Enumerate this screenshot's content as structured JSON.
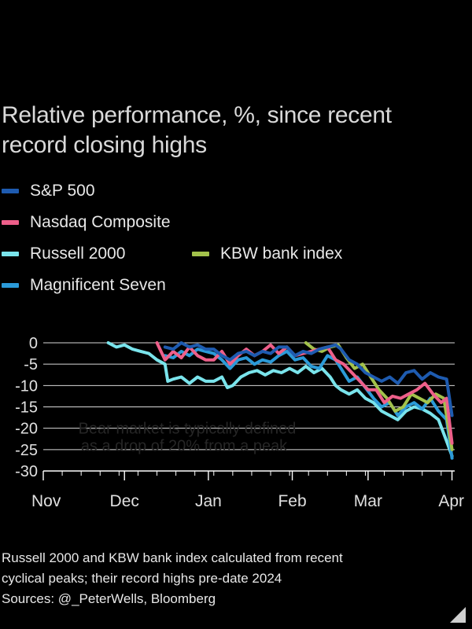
{
  "title": "Relative performance, %, since recent record closing highs",
  "legend": [
    {
      "label": "S&P 500",
      "color": "#1e5bb0"
    },
    {
      "label": "Nasdaq Composite",
      "color": "#ee5f8a"
    },
    {
      "label": "Russell 2000",
      "color": "#7ae4ec"
    },
    {
      "label": "KBW bank index",
      "color": "#a3c24b"
    },
    {
      "label": "Magnificent Seven",
      "color": "#2b9ad8"
    }
  ],
  "footnote": {
    "line1": "Russell 2000 and KBW bank index calculated from recent",
    "line2": "cyclical peaks; their record highs pre-date 2024",
    "line3": "Sources: @_PeterWells, Bloomberg"
  },
  "chart_data": {
    "type": "line",
    "title": "Relative performance, %, since recent record closing highs",
    "xlabel": "",
    "ylabel": "%",
    "ylim": [
      -30,
      0
    ],
    "yticks": [
      0,
      -5,
      -10,
      -15,
      -20,
      -25,
      -30
    ],
    "ytick_labels": [
      "0",
      "-5",
      "-10",
      "-15",
      "-20",
      "-25",
      "-30"
    ],
    "x_unit": "days since 1 Nov 2024",
    "xlim": [
      0,
      152
    ],
    "month_ticks": [
      {
        "label": "Nov",
        "x": 0
      },
      {
        "label": "Dec",
        "x": 30
      },
      {
        "label": "Jan",
        "x": 61
      },
      {
        "label": "Feb",
        "x": 92
      },
      {
        "label": "Mar",
        "x": 120
      },
      {
        "label": "Apr",
        "x": 151
      }
    ],
    "annotation": {
      "line1": "Bear market is typically defined",
      "line2": "as a drop of 20% from a peak",
      "y": -20
    },
    "series": [
      {
        "name": "Russell 2000",
        "color": "#7ae4ec",
        "x": [
          24,
          27,
          30,
          33,
          36,
          39,
          42,
          45,
          46,
          48,
          51,
          54,
          57,
          60,
          63,
          66,
          68,
          70,
          73,
          76,
          79,
          82,
          85,
          88,
          91,
          94,
          97,
          100,
          103,
          106,
          108,
          110,
          113,
          116,
          119,
          122,
          125,
          128,
          131,
          134,
          137,
          140,
          143,
          146,
          149,
          151
        ],
        "y": [
          0,
          -1,
          -0.5,
          -1.5,
          -2,
          -2.5,
          -4,
          -5,
          -9,
          -8.5,
          -8,
          -9.5,
          -8,
          -9,
          -9,
          -8,
          -10.5,
          -10,
          -8,
          -7,
          -6.5,
          -7.5,
          -6.5,
          -7,
          -6,
          -7,
          -5.5,
          -7,
          -6,
          -8,
          -10,
          -11,
          -12,
          -11,
          -13,
          -14,
          -16,
          -17,
          -18,
          -16,
          -15,
          -15.5,
          -16.5,
          -18,
          -23,
          -26.5
        ]
      },
      {
        "name": "Magnificent Seven",
        "color": "#2b9ad8",
        "x": [
          45,
          48,
          51,
          54,
          57,
          60,
          63,
          66,
          69,
          72,
          75,
          78,
          81,
          84,
          87,
          90,
          93,
          96,
          99,
          102,
          105,
          108,
          110,
          113,
          116,
          119,
          122,
          125,
          128,
          131,
          134,
          137,
          140,
          143,
          146,
          149,
          151
        ],
        "y": [
          -3,
          -3.5,
          -2,
          -3,
          -1.5,
          -2,
          -2.5,
          -4,
          -6,
          -4,
          -3.5,
          -5,
          -4,
          -4.5,
          -3,
          -2,
          -4,
          -3.5,
          -5.5,
          -6,
          -3,
          -4,
          -6,
          -9,
          -8,
          -10.5,
          -13,
          -15,
          -14,
          -17,
          -15,
          -14,
          -15.5,
          -13,
          -16,
          -18,
          -27
        ]
      },
      {
        "name": "KBW bank index",
        "color": "#a3c24b",
        "x": [
          97,
          100,
          103,
          106,
          109,
          112,
          115,
          118,
          121,
          124,
          127,
          130,
          133,
          136,
          139,
          142,
          145,
          148,
          151
        ],
        "y": [
          0,
          -1.5,
          -2,
          -1,
          -0.5,
          -3.5,
          -6,
          -5,
          -8,
          -11,
          -13,
          -16,
          -15,
          -12,
          -13,
          -14,
          -12,
          -13,
          -25
        ]
      },
      {
        "name": "Nasdaq Composite",
        "color": "#ee5f8a",
        "x": [
          42,
          45,
          48,
          51,
          54,
          57,
          60,
          63,
          66,
          69,
          72,
          75,
          78,
          81,
          84,
          87,
          90,
          93,
          96,
          99,
          102,
          105,
          108,
          111,
          114,
          117,
          120,
          123,
          126,
          129,
          132,
          135,
          138,
          141,
          144,
          147,
          149,
          151
        ],
        "y": [
          0,
          -4,
          -2,
          -3.5,
          -1,
          -3,
          -4,
          -4,
          -2,
          -5,
          -3,
          -1.5,
          -3,
          -2,
          -0.5,
          -2.5,
          -1,
          -3,
          -2.5,
          -2,
          -1.5,
          -1,
          -4,
          -5,
          -7,
          -9,
          -11,
          -11,
          -14,
          -12.5,
          -13,
          -12,
          -11,
          -9.5,
          -12,
          -14,
          -13,
          -23.5
        ]
      },
      {
        "name": "S&P 500",
        "color": "#1e5bb0",
        "x": [
          45,
          48,
          51,
          54,
          57,
          60,
          63,
          66,
          69,
          72,
          75,
          78,
          81,
          84,
          87,
          90,
          93,
          96,
          99,
          102,
          105,
          108,
          110,
          113,
          116,
          119,
          122,
          125,
          128,
          131,
          134,
          137,
          140,
          143,
          146,
          149,
          151
        ],
        "y": [
          -1,
          -1.5,
          0,
          -1,
          -0.5,
          -1.5,
          -1.5,
          -3,
          -4,
          -2.5,
          -2,
          -3,
          -2,
          -2.5,
          -1,
          -1,
          -3,
          -2,
          -2.5,
          -1.5,
          -1,
          -0.5,
          -1.5,
          -4,
          -5,
          -7,
          -8,
          -9,
          -8,
          -9.5,
          -7,
          -6.5,
          -8.5,
          -7,
          -8,
          -8.5,
          -17
        ]
      }
    ]
  }
}
